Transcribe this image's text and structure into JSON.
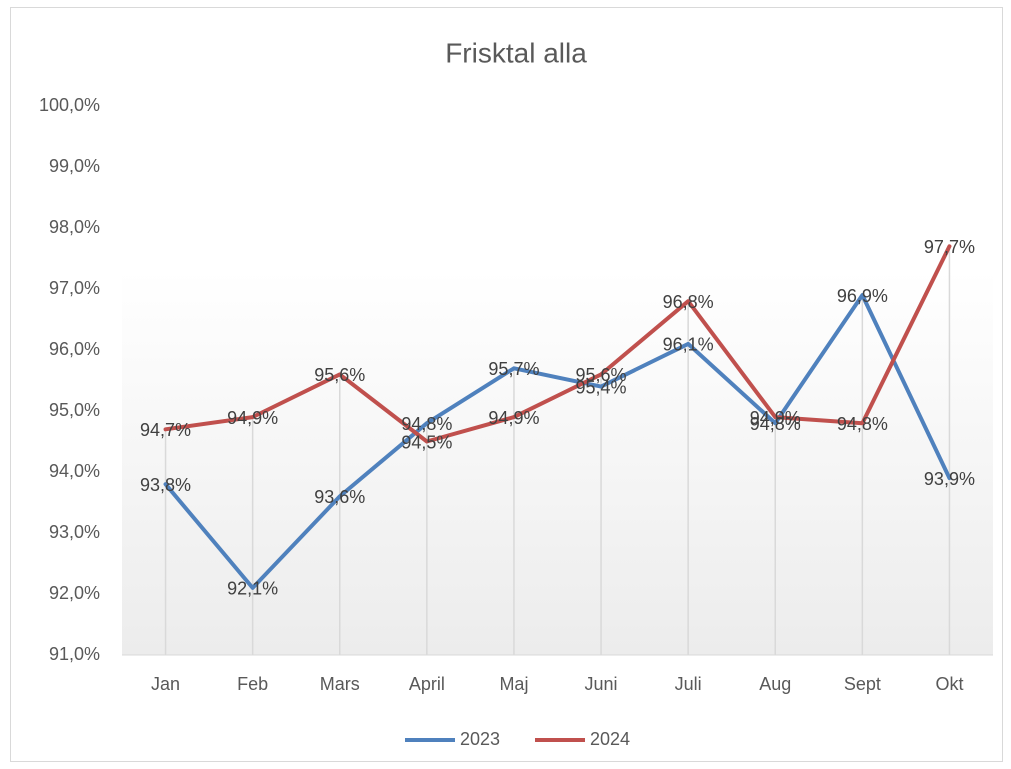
{
  "chart_data": {
    "type": "line",
    "title": "Frisktal alla",
    "categories": [
      "Jan",
      "Feb",
      "Mars",
      "April",
      "Maj",
      "Juni",
      "Juli",
      "Aug",
      "Sept",
      "Okt"
    ],
    "series": [
      {
        "name": "2023",
        "color": "#4f81bd",
        "values": [
          93.8,
          92.1,
          93.6,
          94.8,
          95.7,
          95.4,
          96.1,
          94.8,
          96.9,
          93.9
        ],
        "value_labels": [
          "93,8%",
          "92,1%",
          "93,6%",
          "94,8%",
          "95,7%",
          "95,4%",
          "96,1%",
          "94,8%",
          "96,9%",
          "93,9%"
        ]
      },
      {
        "name": "2024",
        "color": "#c0504d",
        "values": [
          94.7,
          94.9,
          95.6,
          94.5,
          94.9,
          95.6,
          96.8,
          94.9,
          94.8,
          97.7
        ],
        "value_labels": [
          "94,7%",
          "94,9%",
          "95,6%",
          "94,5%",
          "94,9%",
          "95,6%",
          "96,8%",
          "94,9%",
          "94,8%",
          "97,7%"
        ]
      }
    ],
    "ylim": [
      91,
      100
    ],
    "yticks": [
      {
        "value": 91,
        "label": "91,0%"
      },
      {
        "value": 92,
        "label": "92,0%"
      },
      {
        "value": 93,
        "label": "93,0%"
      },
      {
        "value": 94,
        "label": "94,0%"
      },
      {
        "value": 95,
        "label": "95,0%"
      },
      {
        "value": 96,
        "label": "96,0%"
      },
      {
        "value": 97,
        "label": "97,0%"
      },
      {
        "value": 98,
        "label": "98,0%"
      },
      {
        "value": 99,
        "label": "99,0%"
      },
      {
        "value": 100,
        "label": "100,0%"
      }
    ],
    "legend": "bottom"
  }
}
